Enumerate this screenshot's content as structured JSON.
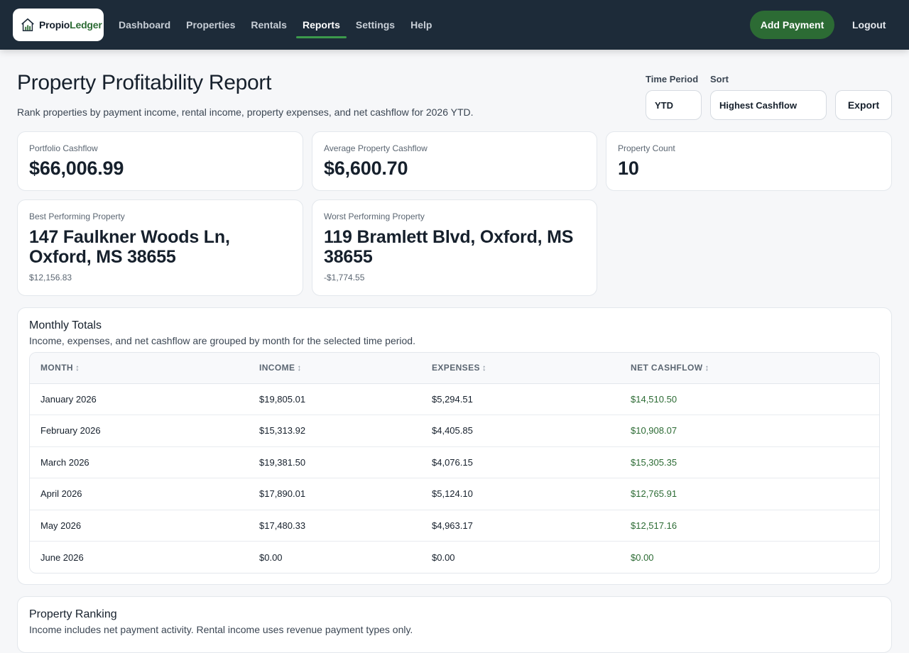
{
  "nav": {
    "brand_prefix": "Propio",
    "brand_suffix": "Ledger",
    "links": [
      "Dashboard",
      "Properties",
      "Rentals",
      "Reports",
      "Settings",
      "Help"
    ],
    "active": "Reports",
    "add_payment": "Add Payment",
    "logout": "Logout"
  },
  "header": {
    "title": "Property Profitability Report",
    "subtitle": "Rank properties by payment income, rental income, property expenses, and net cashflow for 2026 YTD.",
    "time_period_label": "Time Period",
    "time_period_value": "YTD",
    "sort_label": "Sort",
    "sort_value": "Highest Cashflow",
    "export": "Export"
  },
  "summary": {
    "portfolio": {
      "label": "Portfolio Cashflow",
      "value": "$66,006.99"
    },
    "average": {
      "label": "Average Property Cashflow",
      "value": "$6,600.70"
    },
    "count": {
      "label": "Property Count",
      "value": "10"
    },
    "best": {
      "label": "Best Performing Property",
      "address": "147 Faulkner Woods Ln, Oxford, MS 38655",
      "value": "$12,156.83"
    },
    "worst": {
      "label": "Worst Performing Property",
      "address": "119 Bramlett Blvd, Oxford, MS 38655",
      "value": "-$1,774.55"
    }
  },
  "monthly": {
    "title": "Monthly Totals",
    "description": "Income, expenses, and net cashflow are grouped by month for the selected time period.",
    "columns": [
      "MONTH",
      "INCOME",
      "EXPENSES",
      "NET CASHFLOW"
    ],
    "rows": [
      {
        "month": "January 2026",
        "income": "$19,805.01",
        "expenses": "$5,294.51",
        "net": "$14,510.50"
      },
      {
        "month": "February 2026",
        "income": "$15,313.92",
        "expenses": "$4,405.85",
        "net": "$10,908.07"
      },
      {
        "month": "March 2026",
        "income": "$19,381.50",
        "expenses": "$4,076.15",
        "net": "$15,305.35"
      },
      {
        "month": "April 2026",
        "income": "$17,890.01",
        "expenses": "$5,124.10",
        "net": "$12,765.91"
      },
      {
        "month": "May 2026",
        "income": "$17,480.33",
        "expenses": "$4,963.17",
        "net": "$12,517.16"
      },
      {
        "month": "June 2026",
        "income": "$0.00",
        "expenses": "$0.00",
        "net": "$0.00"
      }
    ]
  },
  "ranking": {
    "title": "Property Ranking",
    "description": "Income includes net payment activity. Rental income uses revenue payment types only."
  },
  "colors": {
    "nav_bg": "#1d2b39",
    "accent_green": "#2c6b34",
    "active_underline": "#3c9a4c"
  },
  "icons": {
    "logo": "house-chart-icon",
    "sort": "sort-arrows-icon"
  }
}
